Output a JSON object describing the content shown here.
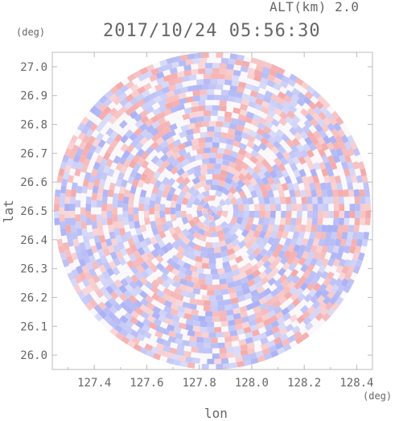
{
  "header": {
    "altitude_label": "ALT(km) 2.0",
    "timestamp": "2017/10/24 05:56:30"
  },
  "colors": {
    "positive": "#f4a0a0",
    "negative": "#a0a8f4",
    "axis": "#bbbbbb",
    "text": "#666666"
  },
  "chart_data": {
    "type": "heatmap",
    "title": "2017/10/24 05:56:30",
    "subtitle": "ALT(km) 2.0",
    "xlabel": "lon",
    "ylabel": "lat",
    "x_unit": "(deg)",
    "y_unit": "(deg)",
    "xlim": [
      127.24,
      128.46
    ],
    "ylim": [
      25.95,
      27.05
    ],
    "x_ticks": [
      "127.4",
      "127.6",
      "127.8",
      "128.0",
      "128.2",
      "128.4"
    ],
    "y_ticks": [
      "26.0",
      "26.1",
      "26.2",
      "26.3",
      "26.4",
      "26.5",
      "26.6",
      "26.7",
      "26.8",
      "26.9",
      "27.0"
    ],
    "center": {
      "lon": 127.85,
      "lat": 26.5
    },
    "radius_deg_lat": 0.55,
    "radius_deg_lon": 0.61,
    "grid": false,
    "legend": "none",
    "description_of_field": "polar radar scan, alternating red/blue radial velocity patches"
  }
}
